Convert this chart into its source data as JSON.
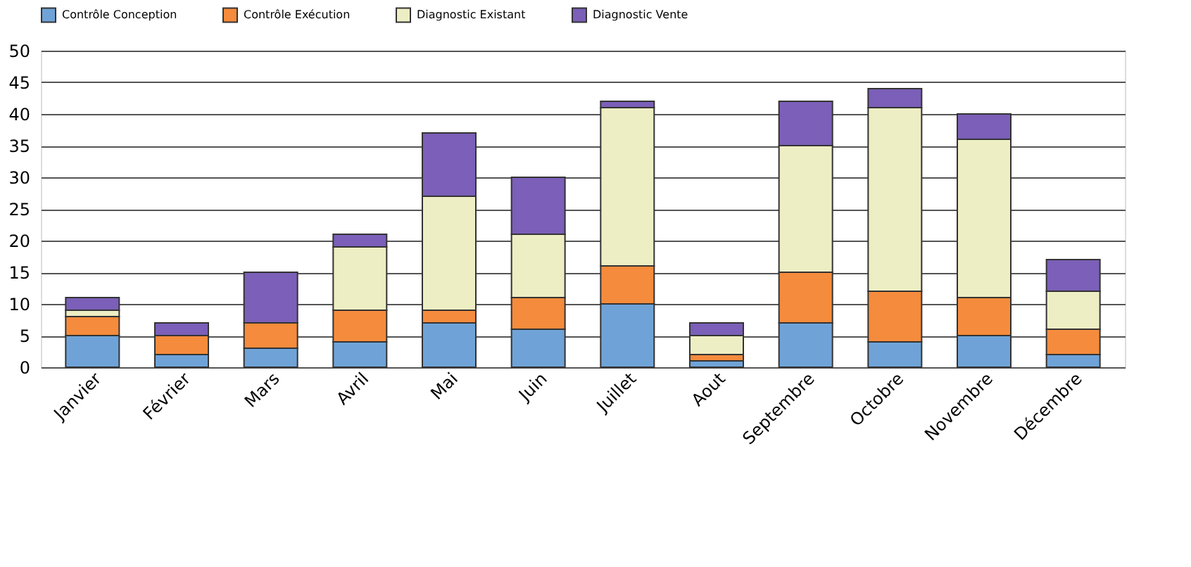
{
  "chart_data": {
    "type": "bar",
    "stacked": true,
    "categories": [
      "Janvier",
      "Février",
      "Mars",
      "Avril",
      "Mai",
      "Juin",
      "Juillet",
      "Aout",
      "Septembre",
      "Octobre",
      "Novembre",
      "Décembre"
    ],
    "series": [
      {
        "name": "Contrôle Conception",
        "color": "#6fa3d8",
        "values": [
          5,
          2,
          3,
          4,
          7,
          6,
          10,
          1,
          7,
          4,
          5,
          2
        ]
      },
      {
        "name": "Contrôle Exécution",
        "color": "#f58b3c",
        "values": [
          3,
          3,
          4,
          5,
          2,
          5,
          6,
          1,
          8,
          8,
          6,
          4
        ]
      },
      {
        "name": "Diagnostic Existant",
        "color": "#eeeec4",
        "values": [
          1,
          0,
          0,
          10,
          18,
          10,
          25,
          3,
          20,
          29,
          25,
          6
        ]
      },
      {
        "name": "Diagnostic Vente",
        "color": "#7b5fb8",
        "values": [
          2,
          2,
          8,
          2,
          10,
          9,
          1,
          2,
          7,
          3,
          4,
          5
        ]
      }
    ],
    "ylim": [
      0,
      50
    ],
    "yticks": [
      0,
      5,
      10,
      15,
      20,
      25,
      30,
      35,
      40,
      45,
      50
    ],
    "grid": "y",
    "legend": "top"
  }
}
